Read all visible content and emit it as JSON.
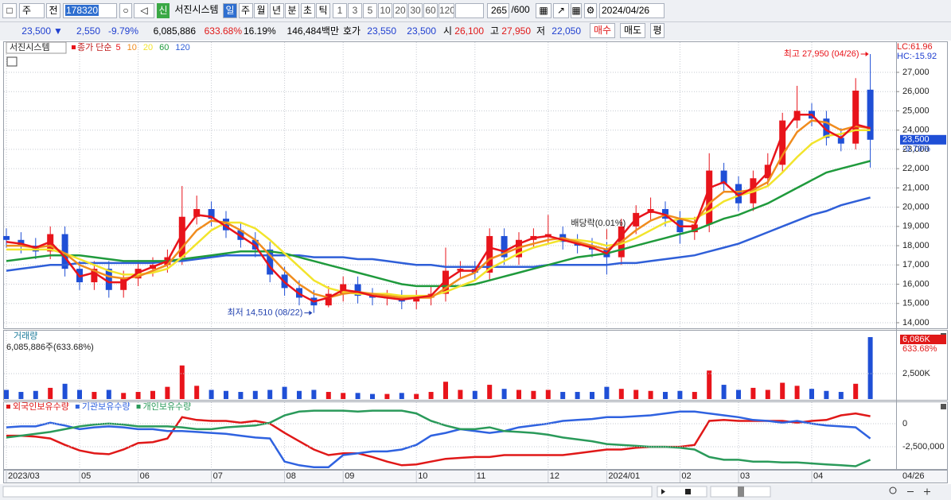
{
  "toolbar": {
    "type_select": "주",
    "scope": "전",
    "code": "178320",
    "badge": "신",
    "name": "서진시스템",
    "periods": [
      "일",
      "주",
      "월",
      "년",
      "분",
      "초",
      "틱"
    ],
    "intervals": [
      "1",
      "3",
      "5",
      "10",
      "20",
      "30",
      "60",
      "120"
    ],
    "count": "265",
    "max": "/600",
    "date": "2024/04/26"
  },
  "quote": {
    "price": "23,500",
    "arrow": "▼",
    "change": "2,550",
    "rate": "-9.79%",
    "volume": "6,085,886",
    "volume_rate": "633.68%",
    "turnover": "16.19%",
    "amount": "146,484백만",
    "ask_label": "호가",
    "ask": "23,550",
    "bid": "23,500",
    "open_label": "시",
    "open": "26,100",
    "high_label": "고",
    "high": "27,950",
    "low_label": "저",
    "low": "22,050",
    "buttons": [
      "매수",
      "매도",
      "평"
    ]
  },
  "chart_data": [
    {
      "type": "candlestick",
      "title": "서진시스템",
      "ma_label": "종가 단순",
      "lc_label": "LC:61.96",
      "hc_label": "HC:-15.92",
      "last_price_label": "23,500",
      "last_change_label": "-9.79%",
      "up_color": "#e8141b",
      "down_color": "#1f4fd6",
      "grid": true,
      "open": [
        18500,
        18300,
        18000,
        17700,
        18600,
        16800,
        16100,
        16800,
        15700,
        16300,
        16800,
        17000,
        17400,
        19500,
        19900,
        19400,
        18800,
        18300,
        17800,
        16500,
        15800,
        15300,
        14900,
        15500,
        16000,
        15400,
        15300,
        15300,
        15100,
        15300,
        15500,
        16700,
        16800,
        16600,
        18500,
        17400,
        18300,
        18500,
        18600,
        18200,
        18000,
        17800,
        17400,
        19000,
        19700,
        19900,
        19400,
        18700,
        19100,
        21900,
        21200,
        20200,
        21500,
        22200,
        24500,
        25000,
        24600,
        23600,
        23300,
        26100
      ],
      "high": [
        18900,
        18700,
        18400,
        19000,
        19000,
        17200,
        17200,
        17200,
        16700,
        17200,
        17400,
        17800,
        21100,
        20600,
        20300,
        19800,
        19200,
        18700,
        18200,
        16900,
        16200,
        15700,
        15900,
        16400,
        16400,
        15800,
        15700,
        15700,
        15700,
        15900,
        17900,
        17200,
        17200,
        18900,
        18900,
        18700,
        18900,
        19600,
        19000,
        18600,
        18400,
        18200,
        19400,
        20100,
        20500,
        20300,
        19800,
        19500,
        22800,
        22300,
        21600,
        21900,
        22800,
        24900,
        26300,
        25400,
        25000,
        24100,
        26700,
        27950
      ],
      "low": [
        17900,
        17600,
        17300,
        17300,
        16400,
        15700,
        15700,
        15300,
        15300,
        15900,
        16400,
        16600,
        17000,
        19100,
        19000,
        18400,
        17900,
        17400,
        16100,
        15400,
        14900,
        14510,
        14800,
        15100,
        15000,
        14900,
        14900,
        14700,
        14700,
        14900,
        15100,
        16300,
        16200,
        16200,
        17000,
        17000,
        17900,
        18100,
        17800,
        17600,
        17400,
        16500,
        17000,
        18600,
        19300,
        19000,
        18100,
        18300,
        18700,
        20800,
        19800,
        19800,
        21100,
        21800,
        24100,
        24200,
        23200,
        22900,
        23000,
        22050
      ],
      "close": [
        18300,
        18000,
        17700,
        18600,
        16800,
        16100,
        16800,
        15700,
        16300,
        16800,
        17000,
        17400,
        19500,
        19900,
        19400,
        18800,
        18300,
        17800,
        16500,
        15800,
        15300,
        14900,
        15500,
        16000,
        15400,
        15300,
        15300,
        15100,
        15300,
        15500,
        16700,
        16800,
        16600,
        18500,
        17400,
        18300,
        18500,
        18600,
        18200,
        18000,
        17800,
        17400,
        19000,
        19700,
        19900,
        19400,
        18700,
        19100,
        21900,
        21200,
        20200,
        21500,
        22200,
        24500,
        25000,
        24600,
        23600,
        23300,
        26050,
        23500
      ],
      "series": [
        {
          "name": "5",
          "color": "#e8141b",
          "values": [
            18200,
            18100,
            17900,
            18200,
            17400,
            16400,
            16600,
            16100,
            16100,
            16600,
            16900,
            17200,
            18600,
            19600,
            19500,
            19000,
            18500,
            18000,
            16900,
            16100,
            15500,
            15100,
            15300,
            15700,
            15600,
            15400,
            15300,
            15200,
            15300,
            15400,
            16200,
            16700,
            16700,
            17900,
            17700,
            18100,
            18400,
            18500,
            18300,
            18100,
            17900,
            17600,
            18500,
            19400,
            19800,
            19600,
            19000,
            19000,
            21000,
            21300,
            20600,
            21000,
            21800,
            23800,
            24800,
            24800,
            24000,
            23600,
            24300,
            24100
          ]
        },
        {
          "name": "10",
          "color": "#f08c1e",
          "values": [
            18000,
            18000,
            17900,
            18000,
            17600,
            17000,
            16700,
            16400,
            16300,
            16400,
            16700,
            17000,
            17900,
            18800,
            19300,
            19200,
            18800,
            18300,
            17500,
            16700,
            16000,
            15500,
            15300,
            15500,
            15600,
            15500,
            15400,
            15300,
            15300,
            15300,
            15800,
            16300,
            16600,
            17300,
            17600,
            17900,
            18100,
            18300,
            18400,
            18200,
            18000,
            17800,
            18200,
            18800,
            19300,
            19600,
            19400,
            19200,
            20200,
            20800,
            20800,
            20900,
            21300,
            22700,
            23900,
            24500,
            24400,
            24000,
            24200,
            24100
          ]
        },
        {
          "name": "20",
          "color": "#f2e42c",
          "values": [
            17800,
            17800,
            17800,
            17800,
            17600,
            17300,
            17000,
            16700,
            16500,
            16500,
            16600,
            16800,
            17400,
            18100,
            18800,
            19200,
            19200,
            18900,
            18300,
            17600,
            16900,
            16200,
            15800,
            15600,
            15500,
            15500,
            15500,
            15400,
            15400,
            15400,
            15600,
            15900,
            16200,
            16800,
            17200,
            17600,
            17900,
            18100,
            18300,
            18300,
            18200,
            18000,
            18100,
            18400,
            18800,
            19200,
            19400,
            19400,
            19800,
            20300,
            20600,
            20800,
            21100,
            21800,
            22600,
            23300,
            23700,
            23800,
            24000,
            24000
          ]
        },
        {
          "name": "60",
          "color": "#1f9a3c",
          "values": [
            17200,
            17300,
            17400,
            17500,
            17500,
            17500,
            17400,
            17300,
            17200,
            17200,
            17200,
            17200,
            17300,
            17400,
            17500,
            17600,
            17700,
            17700,
            17700,
            17600,
            17400,
            17200,
            17000,
            16800,
            16600,
            16400,
            16200,
            16000,
            15900,
            15900,
            15900,
            15900,
            16000,
            16200,
            16400,
            16600,
            16800,
            17000,
            17200,
            17400,
            17500,
            17600,
            17800,
            18000,
            18200,
            18400,
            18600,
            18800,
            19100,
            19400,
            19600,
            19900,
            20200,
            20600,
            21000,
            21400,
            21800,
            22000,
            22200,
            22400
          ]
        },
        {
          "name": "120",
          "color": "#2f5fd8",
          "values": [
            16700,
            16800,
            16900,
            17000,
            17000,
            17100,
            17100,
            17100,
            17100,
            17100,
            17100,
            17200,
            17200,
            17300,
            17400,
            17500,
            17500,
            17500,
            17500,
            17500,
            17500,
            17400,
            17400,
            17400,
            17300,
            17300,
            17200,
            17100,
            17000,
            17000,
            16900,
            16900,
            16900,
            16900,
            16900,
            16900,
            16900,
            17000,
            17000,
            17000,
            17000,
            17000,
            17100,
            17100,
            17200,
            17300,
            17400,
            17500,
            17700,
            17900,
            18100,
            18400,
            18700,
            19000,
            19300,
            19600,
            19800,
            20100,
            20300,
            20500
          ]
        }
      ],
      "ylim": [
        13710,
        28610
      ],
      "yticks": [
        {
          "value": 14000,
          "label": "14,000"
        },
        {
          "value": 15000,
          "label": "15,000"
        },
        {
          "value": 16000,
          "label": "16,000"
        },
        {
          "value": 17000,
          "label": "17,000"
        },
        {
          "value": 18000,
          "label": "18,000"
        },
        {
          "value": 19000,
          "label": "19,000"
        },
        {
          "value": 20000,
          "label": "20,000"
        },
        {
          "value": 21000,
          "label": "21,000"
        },
        {
          "value": 22000,
          "label": "22,000"
        },
        {
          "value": 23000,
          "label": "23,000"
        },
        {
          "value": 24000,
          "label": "24,000"
        },
        {
          "value": 25000,
          "label": "25,000"
        },
        {
          "value": 26000,
          "label": "26,000"
        },
        {
          "value": 27000,
          "label": "27,000"
        }
      ],
      "annotations": [
        {
          "text": "최고 27,950 (04/26)",
          "index": 59,
          "value": 27950,
          "color": "#e8141b"
        },
        {
          "text": "최저 14,510 (08/22)",
          "index": 21,
          "value": 14510,
          "color": "#1f3fae"
        },
        {
          "text": "배당락(0.01%)",
          "index": 41
        }
      ]
    },
    {
      "type": "bar",
      "title": "거래량",
      "summary": "6,085,886주(633.68%)",
      "last_label": "6,086K",
      "last_rate_label": "633.68%",
      "values": [
        900000,
        700000,
        800000,
        1100000,
        1500000,
        900000,
        700000,
        900000,
        600000,
        700000,
        800000,
        1200000,
        3300000,
        1300000,
        900000,
        800000,
        700000,
        800000,
        900000,
        1200000,
        800000,
        900000,
        700000,
        600000,
        600000,
        500000,
        500000,
        600000,
        500000,
        700000,
        1700000,
        900000,
        800000,
        1400000,
        1000000,
        900000,
        800000,
        900000,
        700000,
        700000,
        700000,
        1200000,
        1000000,
        900000,
        800000,
        700000,
        800000,
        700000,
        2800000,
        1400000,
        900000,
        1100000,
        900000,
        1600000,
        1300000,
        1000000,
        800000,
        700000,
        1500000,
        6085886
      ],
      "ylim": [
        0,
        6560000
      ],
      "yticks": [
        {
          "value": 2500000,
          "label": "2,500K"
        }
      ]
    },
    {
      "type": "line",
      "series": [
        {
          "name": "외국인보유수량",
          "color": "#e01818",
          "values": [
            -1300000,
            -1300000,
            -1400000,
            -1600000,
            -2300000,
            -2900000,
            -3200000,
            -3300000,
            -2800000,
            -2100000,
            -2000000,
            -1600000,
            700000,
            400000,
            300000,
            300000,
            100000,
            300000,
            0,
            -1000000,
            -1900000,
            -2800000,
            -3400000,
            -3200000,
            -3200000,
            -3600000,
            -4100000,
            -4500000,
            -4400000,
            -4100000,
            -3800000,
            -3700000,
            -3600000,
            -3600000,
            -3400000,
            -3400000,
            -3400000,
            -3400000,
            -3400000,
            -3200000,
            -3000000,
            -2800000,
            -2800000,
            -2600000,
            -2500000,
            -2500000,
            -2500000,
            -2300000,
            300000,
            400000,
            300000,
            300000,
            300000,
            300000,
            100000,
            300000,
            400000,
            900000,
            1100000,
            800000
          ]
        },
        {
          "name": "기관보유수량",
          "color": "#2f62e0",
          "values": [
            -400000,
            -300000,
            -300000,
            100000,
            -200000,
            -600000,
            -400000,
            -300000,
            -400000,
            -600000,
            -600000,
            -800000,
            -800000,
            -900000,
            -1000000,
            -1100000,
            -1300000,
            -1500000,
            -1600000,
            -4100000,
            -4500000,
            -4700000,
            -4700000,
            -3400000,
            -3200000,
            -3000000,
            -3000000,
            -2800000,
            -2300000,
            -1300000,
            -1000000,
            -600000,
            -800000,
            -1000000,
            -800000,
            -400000,
            -200000,
            0,
            300000,
            400000,
            500000,
            700000,
            700000,
            800000,
            900000,
            1100000,
            1300000,
            1300000,
            1100000,
            900000,
            700000,
            400000,
            300000,
            100000,
            300000,
            0,
            -200000,
            -300000,
            -400000,
            -1600000
          ]
        },
        {
          "name": "개인보유수량",
          "color": "#2a9a5a",
          "values": [
            -1500000,
            -1300000,
            -1100000,
            -900000,
            -600000,
            -300000,
            -100000,
            0,
            -100000,
            -300000,
            -300000,
            -300000,
            -400000,
            -600000,
            -600000,
            -400000,
            -300000,
            -200000,
            100000,
            900000,
            1300000,
            1400000,
            1400000,
            1400000,
            1300000,
            1400000,
            1400000,
            1400000,
            1100000,
            300000,
            -200000,
            -600000,
            -600000,
            -400000,
            -800000,
            -900000,
            -1000000,
            -1200000,
            -1500000,
            -1700000,
            -1900000,
            -2200000,
            -2300000,
            -2400000,
            -2500000,
            -2500000,
            -2600000,
            -2800000,
            -3600000,
            -3900000,
            -3900000,
            -4100000,
            -4100000,
            -4200000,
            -4200000,
            -4300000,
            -4400000,
            -4500000,
            -4600000,
            -3900000
          ]
        }
      ],
      "ylim": [
        -4900000,
        2400000
      ],
      "yticks": [
        0,
        {
          "value": -2500000,
          "label": "-2,500,000"
        }
      ],
      "xticks": [
        {
          "value": 0,
          "label": "2023/03"
        },
        {
          "value": 5,
          "label": "05"
        },
        {
          "value": 9,
          "label": "06"
        },
        {
          "value": 14,
          "label": "07"
        },
        {
          "value": 19,
          "label": "08"
        },
        {
          "value": 23,
          "label": "09"
        },
        {
          "value": 28,
          "label": "10"
        },
        {
          "value": 32,
          "label": "11"
        },
        {
          "value": 37,
          "label": "12"
        },
        {
          "value": 41,
          "label": "2024/01"
        },
        {
          "value": 46,
          "label": "02"
        },
        {
          "value": 50,
          "label": "03"
        },
        {
          "value": 55,
          "label": "04"
        }
      ],
      "last_x_label": "04/26"
    }
  ]
}
